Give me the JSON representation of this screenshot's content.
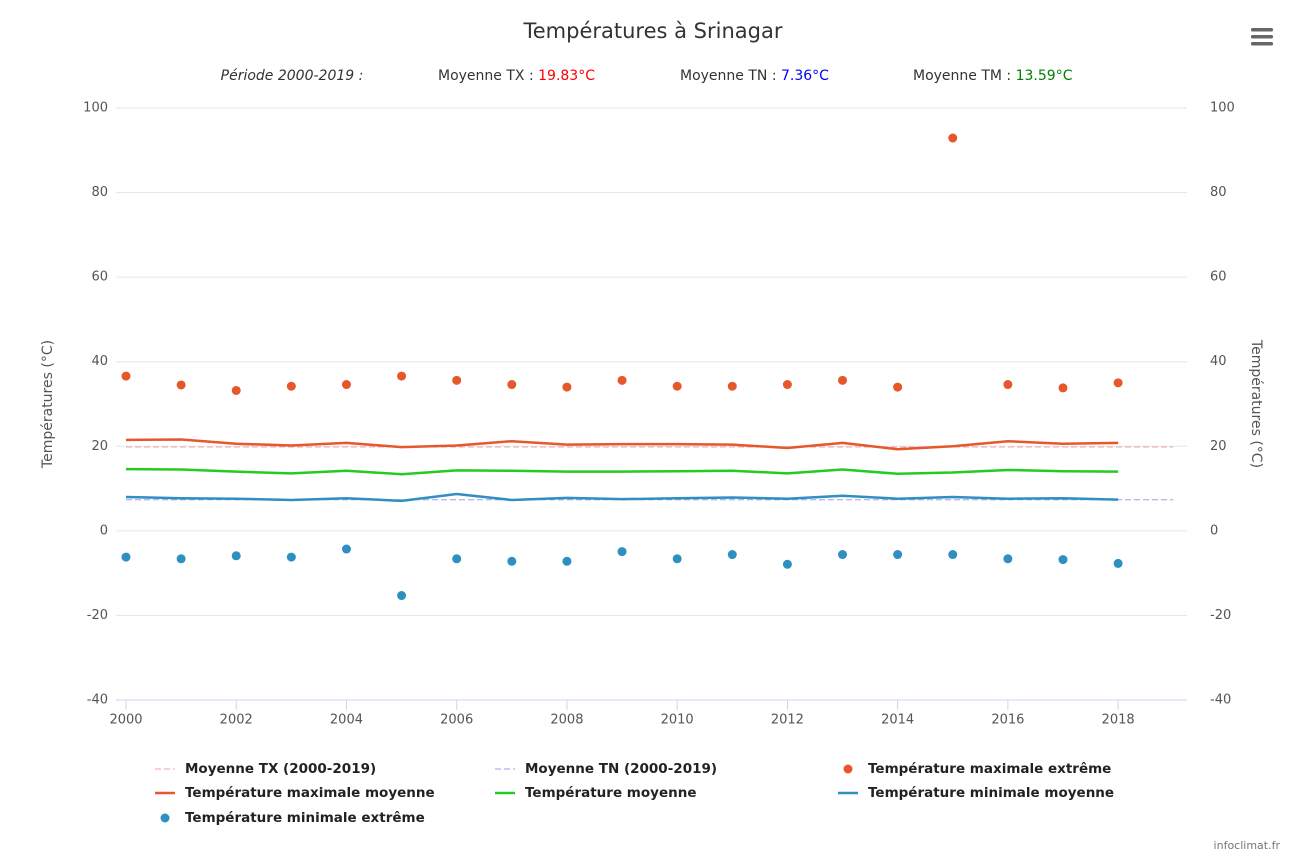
{
  "chart_data": {
    "type": "line",
    "title": "Températures à Srinagar",
    "subtitle": [
      {
        "label": "Période 2000-2019 :"
      },
      {
        "label": "Moyenne TX : ",
        "value_label": "19.83°C",
        "color": "#ff0000"
      },
      {
        "label": "Moyenne TN : ",
        "value_label": "7.36°C",
        "color": "#0000ff"
      },
      {
        "label": "Moyenne TM : ",
        "value_label": "13.59°C",
        "color": "#008000"
      }
    ],
    "y_label": "Températures (°C)",
    "y2_label": "Températures (°C)",
    "credit": "infoclimat.fr",
    "x": [
      2000,
      2001,
      2002,
      2003,
      2004,
      2005,
      2006,
      2007,
      2008,
      2009,
      2010,
      2011,
      2012,
      2013,
      2014,
      2015,
      2016,
      2017,
      2018
    ],
    "xlim": [
      2000,
      2019.25
    ],
    "xticks": [
      2000,
      2002,
      2004,
      2006,
      2008,
      2010,
      2012,
      2014,
      2016,
      2018
    ],
    "ylim": [
      -40,
      100
    ],
    "yticks": [
      -40,
      -20,
      0,
      20,
      40,
      60,
      80,
      100
    ],
    "y2lim": [
      -40,
      100
    ],
    "y2ticks": [
      -40,
      -20,
      0,
      20,
      40,
      60,
      80,
      100
    ],
    "grid": true,
    "legend": "bottom",
    "series": [
      {
        "name": "Moyenne TX (2000-2019)",
        "type": "line",
        "dashed": true,
        "color": "#f4a3a3",
        "x": [
          2000,
          2019
        ],
        "values": [
          19.83,
          19.83
        ]
      },
      {
        "name": "Moyenne TN (2000-2019)",
        "type": "line",
        "dashed": true,
        "color": "#9d9df0",
        "x": [
          2000,
          2019
        ],
        "values": [
          7.36,
          7.36
        ]
      },
      {
        "name": "Température maximale extrême",
        "type": "scatter",
        "color": "#e5582b",
        "values": [
          36.6,
          34.5,
          33.2,
          34.2,
          34.6,
          36.6,
          35.6,
          34.6,
          34.0,
          35.6,
          34.2,
          34.2,
          34.6,
          35.6,
          34.0,
          92.9,
          34.6,
          33.8,
          35.0
        ]
      },
      {
        "name": "Température maximale moyenne",
        "type": "line",
        "color": "#e5582b",
        "values": [
          21.5,
          21.6,
          20.6,
          20.2,
          20.8,
          19.8,
          20.2,
          21.2,
          20.4,
          20.5,
          20.5,
          20.4,
          19.6,
          20.8,
          19.3,
          20.0,
          21.2,
          20.6,
          20.8
        ]
      },
      {
        "name": "Température moyenne",
        "type": "line",
        "color": "#22cc22",
        "values": [
          14.6,
          14.5,
          14.0,
          13.6,
          14.2,
          13.4,
          14.3,
          14.2,
          14.0,
          14.0,
          14.1,
          14.2,
          13.6,
          14.5,
          13.5,
          13.8,
          14.4,
          14.1,
          14.0
        ]
      },
      {
        "name": "Température minimale moyenne",
        "type": "line",
        "color": "#2f8fc0",
        "values": [
          8.0,
          7.7,
          7.6,
          7.3,
          7.7,
          7.1,
          8.7,
          7.3,
          7.8,
          7.5,
          7.7,
          7.9,
          7.6,
          8.3,
          7.6,
          8.0,
          7.6,
          7.7,
          7.4
        ]
      },
      {
        "name": "Température minimale extrême",
        "type": "scatter",
        "color": "#2f8fc0",
        "values": [
          -6.2,
          -6.6,
          -5.9,
          -6.2,
          -4.3,
          -15.3,
          -6.6,
          -7.2,
          -7.2,
          -4.9,
          -6.6,
          -5.6,
          -7.9,
          -5.6,
          -5.6,
          -5.6,
          -6.6,
          -6.8,
          -7.7
        ]
      }
    ]
  }
}
